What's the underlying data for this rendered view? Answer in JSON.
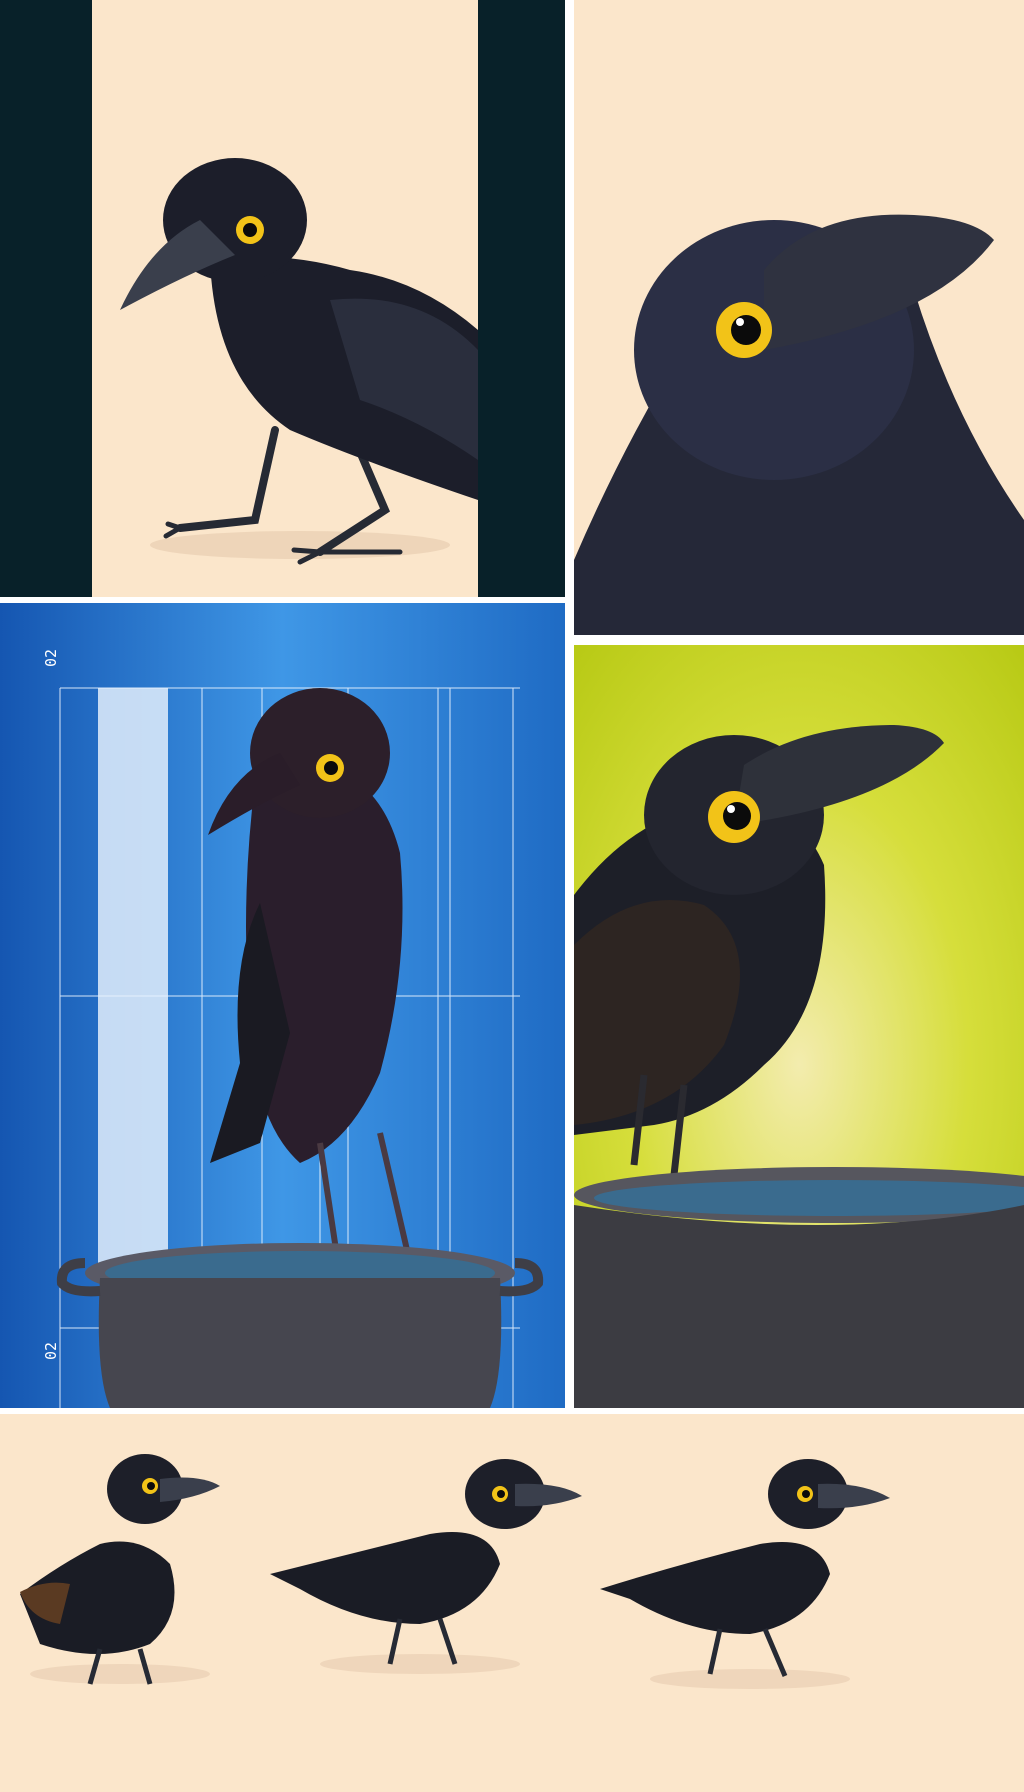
{
  "collage": {
    "panels": [
      {
        "id": "crow-full-standing",
        "background": "#fbe6cb",
        "side_bars": "#082129"
      },
      {
        "id": "crow-head-closeup",
        "background": "#fbe6cb"
      },
      {
        "id": "crow-on-pot-with-guides",
        "background": "#2a7bd2"
      },
      {
        "id": "crow-drinking-pot",
        "background": "#c9d627"
      },
      {
        "id": "three-crows-row",
        "background": "#fbe6cb"
      }
    ],
    "guide_labels": {
      "top": "02",
      "bottom": "02"
    },
    "colors": {
      "crow_body": "#1c1e2a",
      "crow_beak": "#3a3f4c",
      "eye": "#f2c318",
      "pot": "#46464f",
      "water": "#3a6b8e"
    }
  }
}
